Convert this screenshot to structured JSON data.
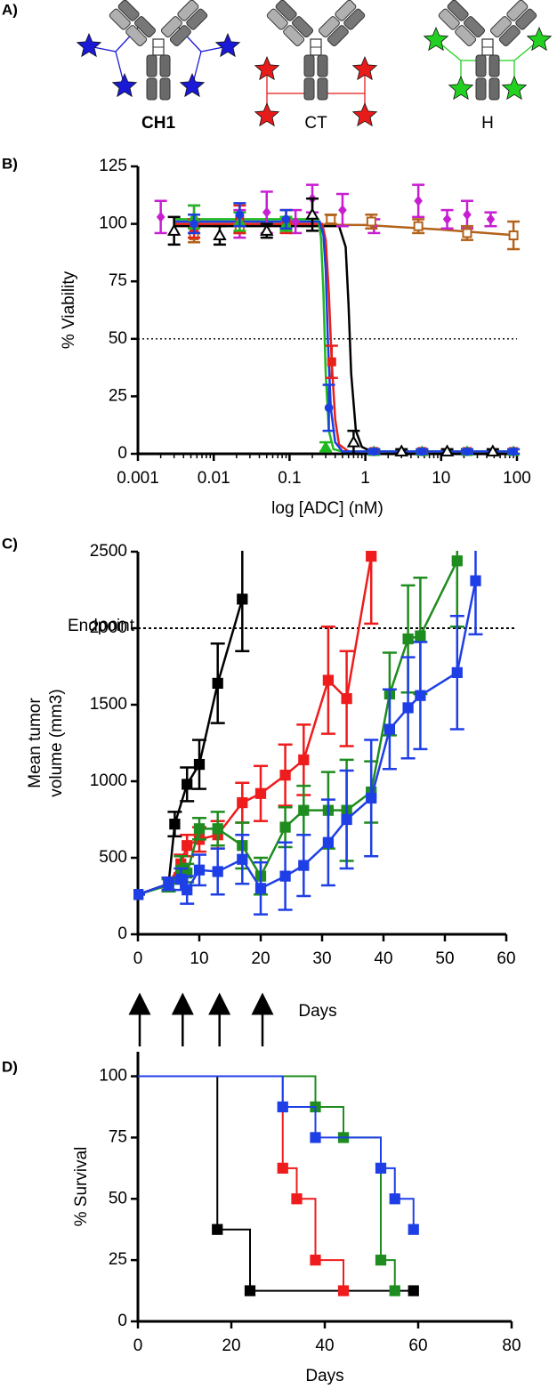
{
  "diagram": {
    "panel": "A)",
    "labels": [
      {
        "text": "CH1",
        "color": "#1a1ad6"
      },
      {
        "text": "CT",
        "color": "#e81b1b"
      },
      {
        "text": "H",
        "color": "#22d022"
      }
    ]
  },
  "chart_data": [
    {
      "panel": "B)",
      "type": "scatter",
      "y_label": "% Viability",
      "x_label": "log [ADC] (nM)",
      "xscale": "log",
      "xlim": [
        0.001,
        100
      ],
      "xticks": [
        0.001,
        0.01,
        0.1,
        1,
        10,
        100
      ],
      "ylim": [
        0,
        125
      ],
      "yticks": [
        0,
        25,
        50,
        75,
        100,
        125
      ],
      "reference_line": 50,
      "series": [
        {
          "color": "#c81ed2",
          "marker": "diamond",
          "x": [
            0.002,
            0.0055,
            0.022,
            0.05,
            0.12,
            0.2,
            0.5,
            1.3,
            5,
            12,
            22,
            45
          ],
          "values": [
            103,
            102,
            100,
            105,
            101,
            111,
            106,
            99,
            110,
            102,
            104,
            102
          ],
          "errors": [
            7,
            6,
            6,
            9,
            5,
            6,
            7,
            3,
            7,
            4,
            6,
            3
          ]
        },
        {
          "color": "#b3621a",
          "marker": "square-open",
          "x": [
            0.0055,
            0.022,
            0.09,
            0.35,
            1.2,
            5,
            22,
            90
          ],
          "values": [
            95,
            98,
            100,
            102,
            101,
            99,
            96,
            95
          ],
          "errors": [
            3,
            2,
            3,
            2,
            3,
            3,
            3,
            6
          ]
        },
        {
          "color": "#000000",
          "marker": "triangle-open",
          "x": [
            0.003,
            0.012,
            0.05,
            0.2,
            0.7,
            3,
            12,
            48
          ],
          "values": [
            97,
            95,
            97,
            104,
            5,
            1,
            1,
            1
          ],
          "errors": [
            6,
            4,
            3,
            7,
            5,
            1,
            1,
            1
          ]
        },
        {
          "color": "#e8211b",
          "marker": "square",
          "x": [
            0.0055,
            0.022,
            0.09,
            0.36,
            1.3,
            5.6,
            22,
            90
          ],
          "values": [
            98,
            102,
            101,
            40,
            1,
            1,
            1,
            1
          ],
          "errors": [
            4,
            6,
            5,
            7,
            1,
            1,
            1,
            1
          ]
        },
        {
          "color": "#1fb81f",
          "marker": "triangle",
          "x": [
            0.0055,
            0.022,
            0.09,
            0.3,
            1.3,
            5.6,
            22,
            90
          ],
          "values": [
            103,
            101,
            100,
            3,
            1,
            1,
            1,
            1
          ],
          "errors": [
            5,
            4,
            3,
            2,
            1,
            1,
            1,
            1
          ]
        },
        {
          "color": "#1a3fe0",
          "marker": "circle",
          "x": [
            0.0055,
            0.022,
            0.09,
            0.33,
            1.3,
            5.6,
            22,
            90
          ],
          "values": [
            100,
            104,
            102,
            20,
            1,
            1,
            1,
            1
          ],
          "errors": [
            4,
            5,
            4,
            10,
            1,
            1,
            1,
            1
          ]
        }
      ],
      "fits": [
        {
          "color": "#b3621a",
          "x": [
            0.003,
            1,
            10,
            100
          ],
          "values": [
            100,
            99.5,
            97.5,
            95
          ]
        },
        {
          "color": "#000000",
          "x": [
            0.003,
            0.45,
            0.55,
            0.6,
            0.65,
            0.75,
            0.9,
            1.2,
            100
          ],
          "values": [
            99,
            99,
            90,
            65,
            35,
            10,
            3,
            1,
            1
          ]
        },
        {
          "color": "#e8211b",
          "x": [
            0.003,
            0.27,
            0.3,
            0.33,
            0.36,
            0.4,
            0.45,
            0.6,
            100
          ],
          "values": [
            100,
            100,
            93,
            70,
            40,
            15,
            4,
            1,
            1
          ]
        },
        {
          "color": "#1fb81f",
          "x": [
            0.003,
            0.24,
            0.26,
            0.28,
            0.3,
            0.33,
            0.38,
            0.5,
            100
          ],
          "values": [
            102,
            102,
            94,
            70,
            35,
            10,
            2,
            1,
            1
          ]
        },
        {
          "color": "#1a3fe0",
          "x": [
            0.003,
            0.25,
            0.28,
            0.3,
            0.32,
            0.35,
            0.4,
            0.5,
            100
          ],
          "values": [
            101,
            101,
            95,
            80,
            50,
            20,
            5,
            1,
            1
          ]
        }
      ]
    },
    {
      "panel": "C)",
      "type": "line",
      "y_label": [
        "Mean tumor",
        "volume (mm3)"
      ],
      "x_label": "Days",
      "xlim": [
        0,
        60
      ],
      "xticks": [
        0,
        10,
        20,
        30,
        40,
        50,
        60
      ],
      "ylim": [
        0,
        2500
      ],
      "yticks": [
        0,
        500,
        1000,
        1500,
        2000,
        2500
      ],
      "reference_line": {
        "value": 2000,
        "label": "Endpoint"
      },
      "dose_days": [
        0,
        7,
        13,
        20
      ],
      "series": [
        {
          "color": "#000000",
          "x": [
            0,
            5,
            6,
            8,
            10,
            13,
            17
          ],
          "values": [
            260,
            330,
            720,
            980,
            1110,
            1640,
            2190
          ],
          "errors": [
            0,
            40,
            80,
            110,
            160,
            260,
            340
          ]
        },
        {
          "color": "#ee1c1c",
          "x": [
            0,
            5,
            7,
            8,
            10,
            13,
            17,
            20,
            24,
            27,
            31,
            34,
            38
          ],
          "values": [
            260,
            330,
            460,
            580,
            620,
            650,
            860,
            920,
            1040,
            1140,
            1660,
            1540,
            2470
          ],
          "errors": [
            0,
            40,
            60,
            70,
            80,
            90,
            130,
            180,
            200,
            230,
            350,
            310,
            440
          ]
        },
        {
          "color": "#1e8c1e",
          "x": [
            0,
            5,
            7,
            8,
            10,
            13,
            17,
            20,
            24,
            27,
            31,
            34,
            38,
            41,
            44,
            46,
            52
          ],
          "values": [
            260,
            320,
            420,
            400,
            690,
            690,
            580,
            380,
            700,
            810,
            810,
            810,
            930,
            1570,
            1930,
            1950,
            2440
          ],
          "errors": [
            0,
            40,
            90,
            60,
            70,
            110,
            150,
            120,
            130,
            160,
            250,
            330,
            200,
            270,
            350,
            380,
            430
          ]
        },
        {
          "color": "#1f3fe6",
          "x": [
            0,
            5,
            7,
            8,
            10,
            13,
            17,
            20,
            24,
            27,
            31,
            34,
            38,
            41,
            44,
            46,
            52,
            55
          ],
          "values": [
            260,
            330,
            360,
            290,
            420,
            410,
            490,
            300,
            380,
            450,
            600,
            750,
            890,
            1340,
            1480,
            1560,
            1710,
            2310
          ],
          "errors": [
            0,
            40,
            70,
            90,
            100,
            150,
            160,
            170,
            220,
            200,
            280,
            320,
            380,
            260,
            330,
            350,
            370,
            350
          ]
        }
      ]
    },
    {
      "panel": "D)",
      "type": "step",
      "y_label": "% Survival",
      "x_label": "Days",
      "xlim": [
        0,
        80
      ],
      "xticks": [
        0,
        20,
        40,
        60,
        80
      ],
      "ylim": [
        0,
        110
      ],
      "yticks": [
        0,
        25,
        50,
        75,
        100
      ],
      "series": [
        {
          "color": "#000000",
          "x": [
            0,
            17,
            24,
            59
          ],
          "values": [
            100,
            37.5,
            12.5,
            12.5
          ]
        },
        {
          "color": "#ee1c1c",
          "x": [
            0,
            31,
            34,
            38,
            44
          ],
          "values": [
            100,
            62.5,
            50,
            25,
            12.5
          ]
        },
        {
          "color": "#1e8c1e",
          "x": [
            0,
            38,
            44,
            52,
            55
          ],
          "values": [
            100,
            87.5,
            75,
            25,
            12.5
          ]
        },
        {
          "color": "#1f3fe6",
          "x": [
            0,
            31,
            38,
            52,
            55,
            59
          ],
          "values": [
            100,
            87.5,
            75,
            62.5,
            50,
            37.5
          ]
        }
      ]
    }
  ]
}
